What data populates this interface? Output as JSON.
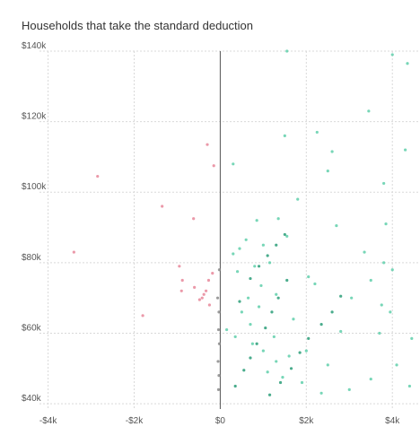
{
  "chart_data": {
    "type": "scatter",
    "title": "Households that take the standard deduction",
    "xlabel": "",
    "ylabel": "",
    "xlim": [
      -4200,
      4600
    ],
    "ylim": [
      38500,
      140000
    ],
    "x_ticks": [
      {
        "value": -4000,
        "label": "-$4k"
      },
      {
        "value": -2000,
        "label": "-$2k"
      },
      {
        "value": 0,
        "label": "$0"
      },
      {
        "value": 2000,
        "label": "$2k"
      },
      {
        "value": 4000,
        "label": "$4k"
      }
    ],
    "y_ticks": [
      {
        "value": 40000,
        "label": "$40k"
      },
      {
        "value": 60000,
        "label": "$60k"
      },
      {
        "value": 80000,
        "label": "$80k"
      },
      {
        "value": 100000,
        "label": "$100k"
      },
      {
        "value": 120000,
        "label": "$120k"
      },
      {
        "value": 140000,
        "label": "$140k"
      }
    ],
    "grid": true,
    "zero_line_x": 0,
    "colors": {
      "loss": "#e8879a",
      "gain": "#5fcfaa",
      "gain_dense": "#2a9d78",
      "zero": "#8a8a8a",
      "zero_line": "#555555",
      "grid": "#d9d9d9"
    },
    "series": [
      {
        "color_key": "loss",
        "points": [
          [
            -3400,
            83000
          ],
          [
            -2850,
            104500
          ],
          [
            -1350,
            96000
          ],
          [
            -1800,
            65000
          ],
          [
            -620,
            92500
          ],
          [
            -950,
            79000
          ],
          [
            -880,
            75000
          ],
          [
            -900,
            72000
          ],
          [
            -600,
            73000
          ],
          [
            -380,
            71000
          ],
          [
            -330,
            72000
          ],
          [
            -420,
            70000
          ],
          [
            -480,
            69500
          ],
          [
            -270,
            75000
          ],
          [
            -250,
            68000
          ],
          [
            -180,
            77000
          ],
          [
            -150,
            107500
          ],
          [
            -300,
            113500
          ]
        ]
      },
      {
        "color_key": "gain",
        "points": [
          [
            1550,
            140000
          ],
          [
            3450,
            123000
          ],
          [
            4000,
            139000
          ],
          [
            4350,
            136500
          ],
          [
            1500,
            116000
          ],
          [
            4300,
            112000
          ],
          [
            3800,
            102500
          ],
          [
            300,
            108000
          ],
          [
            2500,
            106000
          ],
          [
            1800,
            98000
          ],
          [
            850,
            92000
          ],
          [
            1350,
            92500
          ],
          [
            2700,
            90500
          ],
          [
            1550,
            87500
          ],
          [
            3800,
            80000
          ],
          [
            2050,
            76000
          ],
          [
            2200,
            74000
          ],
          [
            3500,
            75000
          ],
          [
            3350,
            83000
          ],
          [
            3950,
            66000
          ],
          [
            1700,
            64000
          ],
          [
            3750,
            68000
          ],
          [
            3050,
            70000
          ],
          [
            2800,
            60500
          ],
          [
            2000,
            55000
          ],
          [
            3700,
            60000
          ],
          [
            4450,
            58500
          ],
          [
            2350,
            43000
          ],
          [
            3500,
            47000
          ],
          [
            4400,
            45000
          ],
          [
            1250,
            59000
          ],
          [
            700,
            62500
          ],
          [
            650,
            70000
          ],
          [
            400,
            77500
          ],
          [
            300,
            82500
          ],
          [
            450,
            84000
          ],
          [
            600,
            86500
          ],
          [
            1000,
            85000
          ],
          [
            1150,
            80000
          ],
          [
            800,
            79000
          ],
          [
            950,
            73500
          ],
          [
            1300,
            71000
          ],
          [
            500,
            66000
          ],
          [
            900,
            67500
          ],
          [
            1000,
            55000
          ],
          [
            1300,
            52000
          ],
          [
            150,
            61000
          ],
          [
            350,
            59000
          ],
          [
            750,
            57000
          ],
          [
            1100,
            49000
          ],
          [
            1600,
            53500
          ],
          [
            1450,
            47500
          ],
          [
            1900,
            46000
          ],
          [
            2500,
            51000
          ],
          [
            3000,
            44000
          ],
          [
            4100,
            51000
          ],
          [
            4000,
            78000
          ],
          [
            2250,
            117000
          ],
          [
            2600,
            111500
          ],
          [
            3850,
            91000
          ]
        ]
      },
      {
        "color_key": "gain_dense",
        "points": [
          [
            350,
            45000
          ],
          [
            550,
            49500
          ],
          [
            700,
            53000
          ],
          [
            850,
            57000
          ],
          [
            1050,
            61500
          ],
          [
            1200,
            66000
          ],
          [
            1350,
            70000
          ],
          [
            1550,
            75000
          ],
          [
            1150,
            42500
          ],
          [
            1400,
            46000
          ],
          [
            1650,
            50000
          ],
          [
            1850,
            54500
          ],
          [
            2050,
            58500
          ],
          [
            2350,
            62500
          ],
          [
            2600,
            66000
          ],
          [
            2800,
            70500
          ],
          [
            450,
            69000
          ],
          [
            700,
            75500
          ],
          [
            900,
            79000
          ],
          [
            1100,
            82000
          ],
          [
            1300,
            85000
          ],
          [
            1500,
            88000
          ]
        ]
      },
      {
        "color_key": "zero",
        "points": [
          [
            -40,
            44000
          ],
          [
            -30,
            48000
          ],
          [
            -50,
            52000
          ],
          [
            -20,
            57000
          ],
          [
            -40,
            61000
          ],
          [
            -30,
            66000
          ],
          [
            -60,
            70000
          ],
          [
            -20,
            78000
          ]
        ]
      }
    ]
  }
}
